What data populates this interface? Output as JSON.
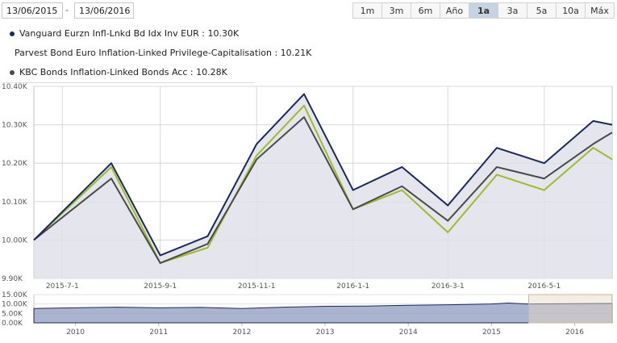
{
  "date_range": {
    "from": "13/06/2015",
    "separator": "-",
    "to": "13/06/2016"
  },
  "range_buttons": [
    {
      "label": "1m",
      "active": false
    },
    {
      "label": "3m",
      "active": false
    },
    {
      "label": "6m",
      "active": false
    },
    {
      "label": "Año",
      "active": false
    },
    {
      "label": "1a",
      "active": true
    },
    {
      "label": "3a",
      "active": false
    },
    {
      "label": "5a",
      "active": false
    },
    {
      "label": "10a",
      "active": false
    },
    {
      "label": "Máx",
      "active": false
    }
  ],
  "chart_data": [
    {
      "type": "area",
      "x": [
        "2015-06-13",
        "2015-08-01",
        "2015-09-01",
        "2015-10-01",
        "2015-11-01",
        "2015-12-01",
        "2016-01-01",
        "2016-02-01",
        "2016-03-01",
        "2016-04-01",
        "2016-05-01",
        "2016-06-01",
        "2016-06-13"
      ],
      "series": [
        {
          "name": "Vanguard Eurzn Infl-Lnkd Bd Idx Inv EUR : 10.30K",
          "color": "#1a2a5c",
          "values": [
            10.0,
            10.2,
            9.96,
            10.01,
            10.25,
            10.38,
            10.13,
            10.19,
            10.09,
            10.24,
            10.2,
            10.31,
            10.3
          ]
        },
        {
          "name": "Parvest Bond Euro Inflation-Linked Privilege-Capitalisation : 10.21K",
          "color": "#9dbb2a",
          "values": [
            10.0,
            10.19,
            9.94,
            9.98,
            10.22,
            10.35,
            10.08,
            10.13,
            10.02,
            10.17,
            10.13,
            10.24,
            10.21
          ]
        },
        {
          "name": "KBC Bonds Inflation-Linked Bonds Acc : 10.28K",
          "color": "#4a4a4a",
          "values": [
            10.0,
            10.16,
            9.94,
            9.99,
            10.21,
            10.32,
            10.08,
            10.14,
            10.05,
            10.19,
            10.16,
            10.25,
            10.28
          ]
        }
      ],
      "ylim": [
        9.9,
        10.4
      ],
      "y_ticks": [
        {
          "value": 9.9,
          "label": "9.90K"
        },
        {
          "value": 10.0,
          "label": "10.00K"
        },
        {
          "value": 10.1,
          "label": "10.10K"
        },
        {
          "value": 10.2,
          "label": "10.20K"
        },
        {
          "value": 10.3,
          "label": "10.30K"
        },
        {
          "value": 10.4,
          "label": "10.40K"
        }
      ],
      "x_ticks": [
        {
          "value": "2015-07-01",
          "label": "2015-7-1"
        },
        {
          "value": "2015-09-01",
          "label": "2015-9-1"
        },
        {
          "value": "2015-11-01",
          "label": "2015-11-1"
        },
        {
          "value": "2016-01-01",
          "label": "2016-1-1"
        },
        {
          "value": "2016-03-01",
          "label": "2016-3-1"
        },
        {
          "value": "2016-05-01",
          "label": "2016-5-1"
        }
      ],
      "grid": true,
      "legend": "top-left"
    },
    {
      "type": "area",
      "x": [
        2009.5,
        2010,
        2010.5,
        2011,
        2011.5,
        2012,
        2012.5,
        2013,
        2013.5,
        2014,
        2014.5,
        2015,
        2015.2,
        2015.45,
        2016,
        2016.45
      ],
      "values": [
        7.6,
        8.0,
        8.3,
        8.0,
        8.2,
        7.6,
        8.3,
        8.8,
        8.9,
        9.3,
        9.6,
        10.0,
        10.5,
        10.0,
        10.2,
        10.3
      ],
      "ylim": [
        0,
        15
      ],
      "y_ticks": [
        {
          "value": 0,
          "label": "0.00K"
        },
        {
          "value": 5,
          "label": "5.00K"
        },
        {
          "value": 10,
          "label": "10.00K"
        },
        {
          "value": 15,
          "label": "15.00K"
        }
      ],
      "x_ticks": [
        {
          "value": 2010,
          "label": "2010"
        },
        {
          "value": 2011,
          "label": "2011"
        },
        {
          "value": 2012,
          "label": "2012"
        },
        {
          "value": 2013,
          "label": "2013"
        },
        {
          "value": 2014,
          "label": "2014"
        },
        {
          "value": 2015,
          "label": "2015"
        },
        {
          "value": 2016,
          "label": "2016"
        }
      ],
      "selected_range": [
        "2015-06-13",
        "2016-06-13"
      ],
      "color": "#1a2a5c",
      "grid": true
    }
  ]
}
